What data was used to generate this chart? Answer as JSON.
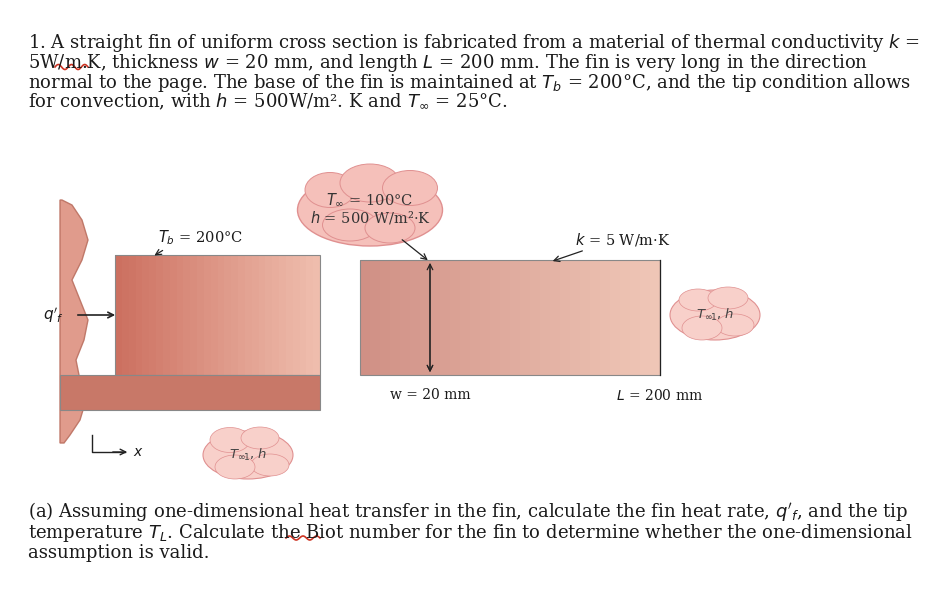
{
  "bg_color": "#ffffff",
  "text_color": "#1a1a1a",
  "fig_width": 9.38,
  "fig_height": 6.16,
  "blob_color_top": "#f5c0ba",
  "blob_color_small": "#f8d0ca",
  "blob_edge_color": "#e09090",
  "fin_left_dark": "#cc8070",
  "fin_left_light": "#e8a898",
  "fin_right_color": "#dea898",
  "fin_edge_color": "#888888",
  "wall_color": "#dd9080",
  "wall_edge": "#bb7060",
  "arrow_color": "#222222"
}
